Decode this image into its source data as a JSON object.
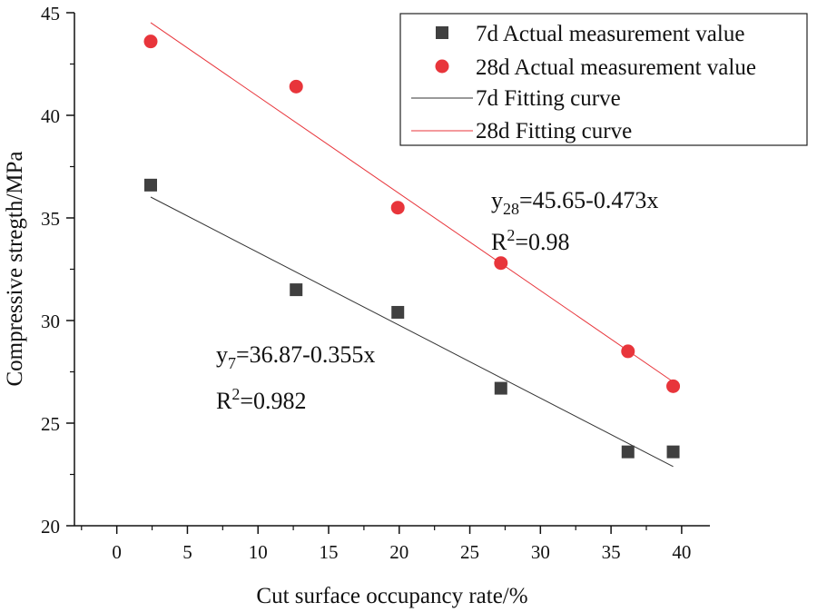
{
  "chart_data": {
    "type": "scatter",
    "xlabel": "Cut surface occupancy rate/%",
    "ylabel": "Compressive stregth/MPa",
    "xlim": [
      -3,
      42
    ],
    "ylim": [
      20,
      45
    ],
    "xticks": [
      0,
      5,
      10,
      15,
      20,
      25,
      30,
      35,
      40
    ],
    "yticks": [
      20,
      25,
      30,
      35,
      40,
      45
    ],
    "grid": false,
    "legend_position": "top-right",
    "series": [
      {
        "name": "7d Actual measurement value",
        "kind": "scatter",
        "marker": "square",
        "color": "#404040",
        "x": [
          2.4,
          12.7,
          19.9,
          27.2,
          36.2,
          39.4
        ],
        "y": [
          36.6,
          31.5,
          30.4,
          26.7,
          23.6,
          23.6
        ]
      },
      {
        "name": "28d Actual measurement value",
        "kind": "scatter",
        "marker": "circle",
        "color": "#e8353b",
        "x": [
          2.4,
          12.7,
          19.9,
          27.2,
          36.2,
          39.4
        ],
        "y": [
          43.6,
          41.4,
          35.5,
          32.8,
          28.5,
          26.8
        ]
      },
      {
        "name": "7d Fitting curve",
        "kind": "line",
        "color": "#333333",
        "intercept": 36.87,
        "slope": -0.355,
        "x_range": [
          2.4,
          39.4
        ]
      },
      {
        "name": "28d Fitting curve",
        "kind": "line",
        "color": "#e8353b",
        "intercept": 45.65,
        "slope": -0.473,
        "x_range": [
          2.4,
          39.4
        ]
      }
    ],
    "annotations": {
      "eq7": {
        "y_base": "y",
        "y_sub": "7",
        "rest": "=36.87-0.355x",
        "r2_base": "R",
        "r2_sup": "2",
        "r2_rest": "=0.982",
        "color": "#111111"
      },
      "eq28": {
        "y_base": "y",
        "y_sub": "28",
        "rest": "=45.65-0.473x",
        "r2_base": "R",
        "r2_sup": "2",
        "r2_rest": "=0.98",
        "color": "#e8353b"
      }
    }
  }
}
